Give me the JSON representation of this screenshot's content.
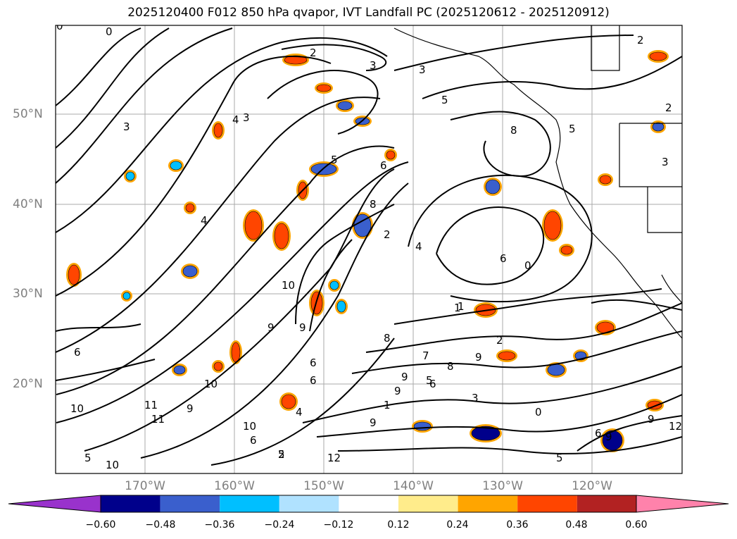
{
  "title": "2025120400 F012 850 hPa qvapor, IVT Landfall PC (2025120612 - 2025120912)",
  "map": {
    "lat_labels": [
      "50°N",
      "40°N",
      "30°N",
      "20°N"
    ],
    "lon_labels": [
      "170°W",
      "160°W",
      "150°W",
      "140°W",
      "130°W",
      "120°W"
    ],
    "extent": {
      "lon": [
        -180,
        -110
      ],
      "lat": [
        10,
        60
      ]
    }
  },
  "contour_labels": [
    "0",
    "0",
    "2",
    "3",
    "3",
    "5",
    "2",
    "2",
    "3",
    "4",
    "3",
    "8",
    "5",
    "6",
    "3",
    "4",
    "5",
    "8",
    "4",
    "2",
    "6",
    "0",
    "6",
    "9",
    "10",
    "6",
    "9",
    "4",
    "1",
    "2",
    "8",
    "7",
    "8",
    "6",
    "9",
    "10",
    "9",
    "11",
    "10",
    "9",
    "9",
    "10",
    "10",
    "6",
    "5",
    "11",
    "12",
    "2",
    "6",
    "9",
    "5",
    "1",
    "0",
    "5",
    "6",
    "12",
    "5",
    "3",
    "9",
    "9",
    "1"
  ],
  "colorbar": {
    "colors": [
      "#9932cc",
      "#00008b",
      "#3a5fcd",
      "#00bfff",
      "#b0e2ff",
      "#ffffff",
      "#ffec8b",
      "#ffa500",
      "#ff4500",
      "#b22222",
      "#ff82ab"
    ],
    "tick_labels": [
      "−0.60",
      "−0.48",
      "−0.36",
      "−0.24",
      "−0.12",
      "0.12",
      "0.24",
      "0.36",
      "0.48",
      "0.60"
    ]
  }
}
